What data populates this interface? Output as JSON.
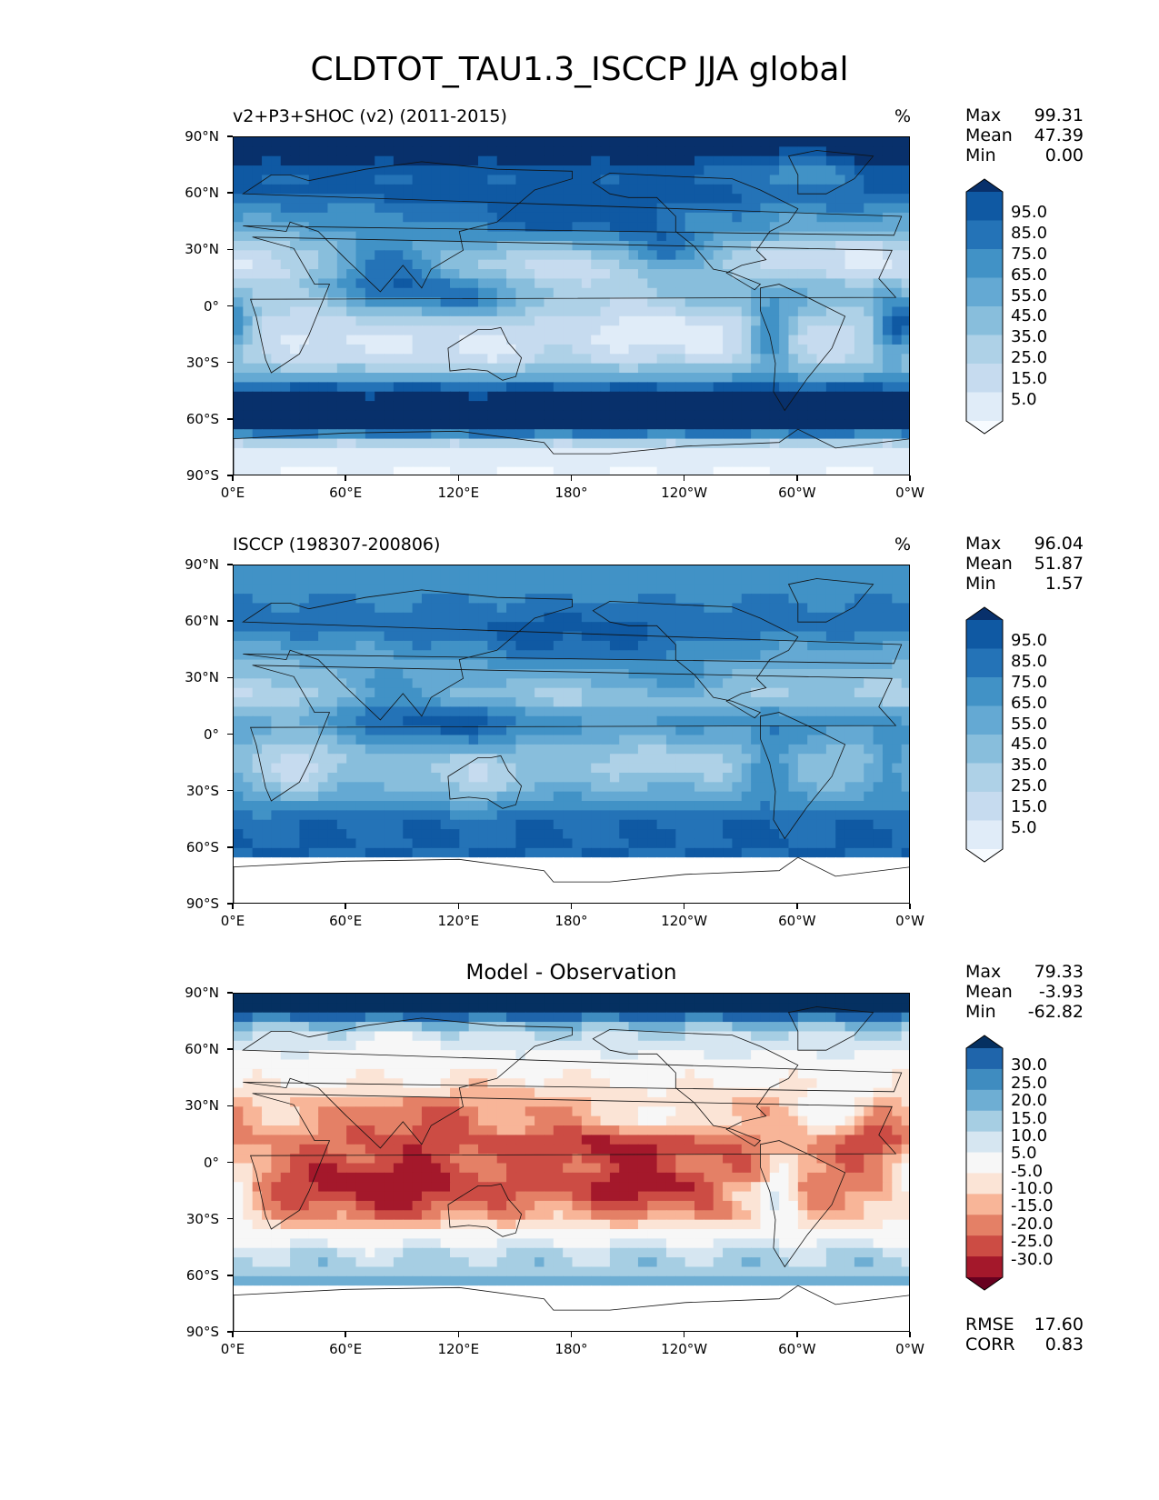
{
  "figure_title": "CLDTOT_TAU1.3_ISCCP JJA global",
  "palette": {
    "blues": [
      "#f7fbff",
      "#e0ecf8",
      "#c6dbef",
      "#aed1e7",
      "#88bedc",
      "#64a9d3",
      "#4192c6",
      "#2473b7",
      "#0f59a3",
      "#08306b"
    ],
    "diverging": [
      "#67001f",
      "#a4182b",
      "#cc4c44",
      "#e48066",
      "#f8b598",
      "#fbe4d6",
      "#f7f7f7",
      "#d6e6f1",
      "#a6cee3",
      "#6eaed3",
      "#3f8cc0",
      "#1f65ab",
      "#053061"
    ]
  },
  "axes": {
    "x_ticks": [
      "0°E",
      "60°E",
      "120°E",
      "180°",
      "120°W",
      "60°W",
      "0°W"
    ],
    "y_ticks": [
      "90°N",
      "60°N",
      "30°N",
      "0°",
      "30°S",
      "60°S",
      "90°S"
    ]
  },
  "panels": [
    {
      "subtitle_left": "v2+P3+SHOC (v2) (2011-2015)",
      "subtitle_right": "%",
      "stats": [
        {
          "label": "Max",
          "value": "99.31"
        },
        {
          "label": "Mean",
          "value": "47.39"
        },
        {
          "label": "Min",
          "value": "0.00"
        }
      ],
      "colorbar_labels": [
        "95.0",
        "85.0",
        "75.0",
        "65.0",
        "55.0",
        "45.0",
        "35.0",
        "25.0",
        "15.0",
        "5.0"
      ]
    },
    {
      "subtitle_left": "ISCCP (198307-200806)",
      "subtitle_right": "%",
      "stats": [
        {
          "label": "Max",
          "value": "96.04"
        },
        {
          "label": "Mean",
          "value": "51.87"
        },
        {
          "label": "Min",
          "value": "1.57"
        }
      ],
      "colorbar_labels": [
        "95.0",
        "85.0",
        "75.0",
        "65.0",
        "55.0",
        "45.0",
        "35.0",
        "25.0",
        "15.0",
        "5.0"
      ]
    },
    {
      "subtitle_center": "Model - Observation",
      "stats": [
        {
          "label": "Max",
          "value": "79.33"
        },
        {
          "label": "Mean",
          "value": "-3.93"
        },
        {
          "label": "Min",
          "value": "-62.82"
        }
      ],
      "colorbar_labels": [
        "30.0",
        "25.0",
        "20.0",
        "15.0",
        "10.0",
        "5.0",
        "-5.0",
        "-10.0",
        "-15.0",
        "-20.0",
        "-25.0",
        "-30.0"
      ],
      "metrics": [
        {
          "label": "RMSE",
          "value": "17.60"
        },
        {
          "label": "CORR",
          "value": "0.83"
        }
      ]
    }
  ],
  "chart_data": [
    {
      "type": "heatmap",
      "title": "v2+P3+SHOC (v2) (2011-2015)",
      "units": "%",
      "x_range": [
        0,
        360
      ],
      "y_range": [
        -90,
        90
      ],
      "levels": [
        5,
        15,
        25,
        35,
        45,
        55,
        65,
        75,
        85,
        95
      ],
      "zonal_profile": {
        "lat": [
          80,
          70,
          60,
          50,
          40,
          30,
          20,
          10,
          0,
          -10,
          -20,
          -30,
          -40,
          -45,
          -50,
          -55,
          -60,
          -65,
          -75,
          -85
        ],
        "value": [
          92,
          75,
          78,
          60,
          50,
          30,
          28,
          48,
          40,
          25,
          22,
          30,
          62,
          88,
          90,
          90,
          88,
          85,
          10,
          5
        ]
      }
    },
    {
      "type": "heatmap",
      "title": "ISCCP (198307-200806)",
      "units": "%",
      "x_range": [
        0,
        360
      ],
      "y_range": [
        -90,
        90
      ],
      "levels": [
        5,
        15,
        25,
        35,
        45,
        55,
        65,
        75,
        85,
        95
      ],
      "zonal_profile": {
        "lat": [
          80,
          70,
          60,
          50,
          40,
          30,
          20,
          10,
          0,
          -10,
          -20,
          -30,
          -40,
          -45,
          -50,
          -55,
          -60,
          -65,
          -75,
          -85
        ],
        "value": [
          60,
          65,
          72,
          60,
          48,
          40,
          35,
          60,
          55,
          40,
          38,
          50,
          65,
          72,
          75,
          75,
          75,
          75,
          0,
          0
        ]
      }
    },
    {
      "type": "heatmap",
      "title": "Model - Observation",
      "units": "%",
      "x_range": [
        0,
        360
      ],
      "y_range": [
        -90,
        90
      ],
      "levels": [
        -30,
        -25,
        -20,
        -15,
        -10,
        -5,
        5,
        10,
        15,
        20,
        25,
        30
      ],
      "zonal_profile": {
        "lat": [
          80,
          70,
          60,
          50,
          40,
          30,
          20,
          10,
          0,
          -10,
          -20,
          -30,
          -40,
          -45,
          -50,
          -55,
          -60,
          -65,
          -75,
          -85
        ],
        "value": [
          32,
          10,
          6,
          0,
          -5,
          -12,
          -10,
          -15,
          -15,
          -18,
          -14,
          -10,
          3,
          8,
          12,
          12,
          14,
          20,
          0,
          0
        ]
      },
      "rmse": 17.6,
      "corr": 0.83
    }
  ]
}
